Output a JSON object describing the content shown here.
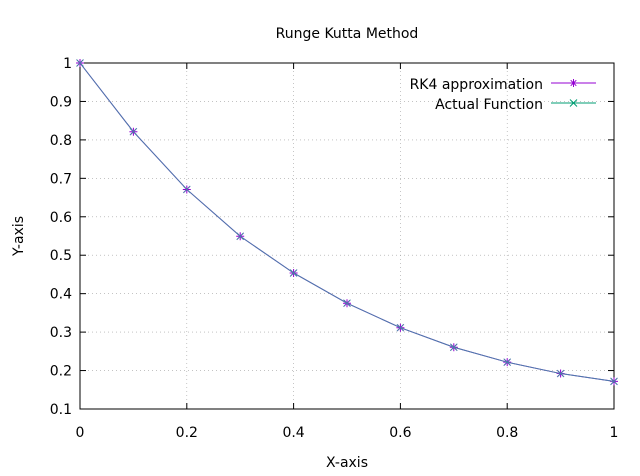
{
  "chart_data": {
    "type": "line",
    "title": "Runge Kutta Method",
    "xlabel": "X-axis",
    "ylabel": "Y-axis",
    "xlim": [
      0,
      1
    ],
    "ylim": [
      0.1,
      1
    ],
    "grid": true,
    "legend_position": "top-right",
    "x_ticks": [
      "0",
      "0.2",
      "0.4",
      "0.6",
      "0.8",
      "1"
    ],
    "y_ticks": [
      "0.1",
      "0.2",
      "0.3",
      "0.4",
      "0.5",
      "0.6",
      "0.7",
      "0.8",
      "0.9",
      "1"
    ],
    "x": [
      0,
      0.1,
      0.2,
      0.3,
      0.4,
      0.5,
      0.6,
      0.7,
      0.8,
      0.9,
      1.0
    ],
    "series": [
      {
        "name": "RK4 approximation",
        "color": "#9400d3",
        "marker": "plus-star",
        "values": [
          1.0,
          0.8213,
          0.6711,
          0.5493,
          0.4538,
          0.3752,
          0.3115,
          0.2606,
          0.2218,
          0.1922,
          0.1718
        ]
      },
      {
        "name": "Actual Function",
        "color": "#009e73",
        "marker": "cross",
        "values": [
          1.0,
          0.8213,
          0.6711,
          0.5493,
          0.4538,
          0.3752,
          0.3115,
          0.2606,
          0.2218,
          0.1922,
          0.1718
        ]
      }
    ],
    "overlap_color": "#4a7fa8"
  }
}
